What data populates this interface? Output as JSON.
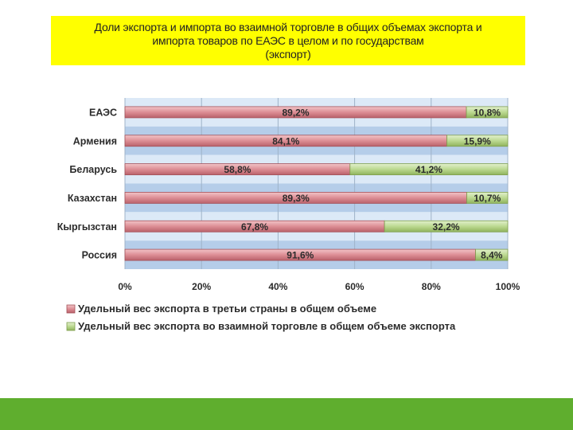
{
  "title": {
    "line1": "Доли экспорта и импорта во взаимной торговле в общих объемах экспорта и",
    "line2": "импорта товаров по ЕАЭС в целом и по государствам",
    "line3": "(экспорт)"
  },
  "colors": {
    "title_bg": "#ffff00",
    "series_1": "#dd8e95",
    "series_2": "#bcd991",
    "band_light": "#dce9f7",
    "band_dark": "#b5cde9",
    "footer": "#5fae2e"
  },
  "chart_data": {
    "type": "bar",
    "orientation": "horizontal",
    "stacked": true,
    "percent": true,
    "categories": [
      "ЕАЭС",
      "Армения",
      "Беларусь",
      "Казахстан",
      "Кыргызстан",
      "Россия"
    ],
    "series": [
      {
        "name": "Удельный вес экспорта в третьи страны в общем объеме",
        "values": [
          89.2,
          84.1,
          58.8,
          89.3,
          67.8,
          91.6
        ],
        "labels": [
          "89,2%",
          "84,1%",
          "58,8%",
          "89,3%",
          "67,8%",
          "91,6%"
        ]
      },
      {
        "name": "Удельный вес экспорта во взаимной торговле в общем объеме экспорта",
        "values": [
          10.8,
          15.9,
          41.2,
          10.7,
          32.2,
          8.4
        ],
        "labels": [
          "10,8%",
          "15,9%",
          "41,2%",
          "10,7%",
          "32,2%",
          "8,4%"
        ]
      }
    ],
    "xlim": [
      0,
      100
    ],
    "xticks": [
      0,
      20,
      40,
      60,
      80,
      100
    ],
    "xtick_labels": [
      "0%",
      "20%",
      "40%",
      "60%",
      "80%",
      "100%"
    ],
    "grid": true,
    "legend_position": "bottom"
  }
}
